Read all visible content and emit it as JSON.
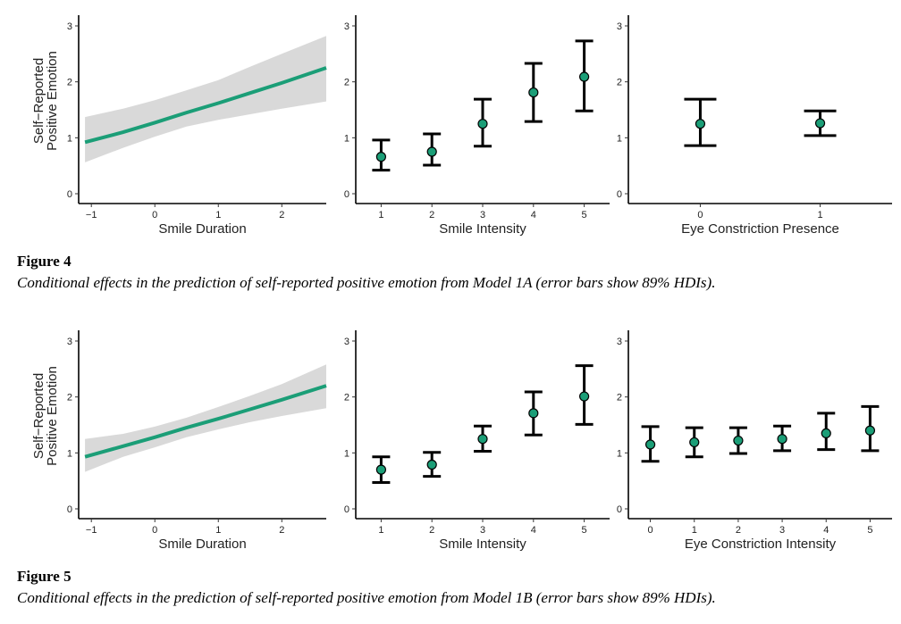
{
  "figures": [
    {
      "title": "Figure 4",
      "caption": "Conditional effects in the prediction of self-reported positive emotion from Model 1A (error bars show 89% HDIs).",
      "ylabel_lines": [
        "Self−Reported",
        "Positive Emotion"
      ]
    },
    {
      "title": "Figure 5",
      "caption": "Conditional effects in the prediction of self-reported positive emotion from Model 1B (error bars show 89% HDIs).",
      "ylabel_lines": [
        "Self−Reported",
        "Positive Emotion"
      ]
    }
  ],
  "colors": {
    "line": "#1b9e77",
    "ribbon": "#d9d9d9",
    "point": "#1b9e77",
    "error_bar": "#000000"
  },
  "chart_data": [
    {
      "figure": 0,
      "type": "line",
      "xlabel": "Smile Duration",
      "ylabel": "Self−Reported Positive Emotion",
      "xlim": [
        -1.2,
        2.7
      ],
      "ylim": [
        0,
        3
      ],
      "xticks": [
        -1,
        0,
        1,
        2
      ],
      "xtick_labels": [
        "−1",
        "0",
        "1",
        "2"
      ],
      "yticks": [
        0,
        1,
        2,
        3
      ],
      "x": [
        -1.1,
        -0.5,
        0,
        0.5,
        1,
        1.5,
        2,
        2.7
      ],
      "y": [
        0.92,
        1.1,
        1.27,
        1.45,
        1.62,
        1.8,
        1.98,
        2.25
      ],
      "lower": [
        0.56,
        0.82,
        1.02,
        1.2,
        1.32,
        1.42,
        1.52,
        1.65
      ],
      "upper": [
        1.37,
        1.52,
        1.67,
        1.85,
        2.03,
        2.27,
        2.5,
        2.82
      ]
    },
    {
      "figure": 0,
      "type": "scatter",
      "xlabel": "Smile Intensity",
      "xlim": [
        0.5,
        5.5
      ],
      "ylim": [
        0,
        3
      ],
      "xticks": [
        1,
        2,
        3,
        4,
        5
      ],
      "xtick_labels": [
        "1",
        "2",
        "3",
        "4",
        "5"
      ],
      "yticks": [
        0,
        1,
        2,
        3
      ],
      "x": [
        1,
        2,
        3,
        4,
        5
      ],
      "y": [
        0.66,
        0.75,
        1.25,
        1.81,
        2.09
      ],
      "lower": [
        0.42,
        0.51,
        0.85,
        1.29,
        1.48
      ],
      "upper": [
        0.96,
        1.07,
        1.69,
        2.33,
        2.73
      ]
    },
    {
      "figure": 0,
      "type": "scatter",
      "xlabel": "Eye Constriction Presence",
      "xlim": [
        -0.6,
        1.6
      ],
      "ylim": [
        0,
        3
      ],
      "xticks": [
        0,
        1
      ],
      "xtick_labels": [
        "0",
        "1"
      ],
      "yticks": [
        0,
        1,
        2,
        3
      ],
      "x": [
        0,
        1
      ],
      "y": [
        1.25,
        1.26
      ],
      "lower": [
        0.86,
        1.04
      ],
      "upper": [
        1.69,
        1.48
      ]
    },
    {
      "figure": 1,
      "type": "line",
      "xlabel": "Smile Duration",
      "ylabel": "Self−Reported Positive Emotion",
      "xlim": [
        -1.2,
        2.7
      ],
      "ylim": [
        0,
        3
      ],
      "xticks": [
        -1,
        0,
        1,
        2
      ],
      "xtick_labels": [
        "−1",
        "0",
        "1",
        "2"
      ],
      "yticks": [
        0,
        1,
        2,
        3
      ],
      "x": [
        -1.1,
        -0.5,
        0,
        0.5,
        1,
        1.5,
        2,
        2.7
      ],
      "y": [
        0.93,
        1.12,
        1.28,
        1.45,
        1.61,
        1.78,
        1.95,
        2.2
      ],
      "lower": [
        0.66,
        0.93,
        1.1,
        1.28,
        1.42,
        1.55,
        1.66,
        1.8
      ],
      "upper": [
        1.25,
        1.34,
        1.47,
        1.63,
        1.82,
        2.02,
        2.23,
        2.58
      ]
    },
    {
      "figure": 1,
      "type": "scatter",
      "xlabel": "Smile Intensity",
      "xlim": [
        0.5,
        5.5
      ],
      "ylim": [
        0,
        3
      ],
      "xticks": [
        1,
        2,
        3,
        4,
        5
      ],
      "xtick_labels": [
        "1",
        "2",
        "3",
        "4",
        "5"
      ],
      "yticks": [
        0,
        1,
        2,
        3
      ],
      "x": [
        1,
        2,
        3,
        4,
        5
      ],
      "y": [
        0.7,
        0.79,
        1.25,
        1.71,
        2.01
      ],
      "lower": [
        0.47,
        0.58,
        1.03,
        1.32,
        1.51
      ],
      "upper": [
        0.93,
        1.01,
        1.48,
        2.09,
        2.56
      ]
    },
    {
      "figure": 1,
      "type": "scatter",
      "xlabel": "Eye Constriction Intensity",
      "xlim": [
        -0.5,
        5.5
      ],
      "ylim": [
        0,
        3
      ],
      "xticks": [
        0,
        1,
        2,
        3,
        4,
        5
      ],
      "xtick_labels": [
        "0",
        "1",
        "2",
        "3",
        "4",
        "5"
      ],
      "yticks": [
        0,
        1,
        2,
        3
      ],
      "x": [
        0,
        1,
        2,
        3,
        4,
        5
      ],
      "y": [
        1.15,
        1.19,
        1.22,
        1.25,
        1.35,
        1.4
      ],
      "lower": [
        0.85,
        0.93,
        0.99,
        1.04,
        1.06,
        1.04
      ],
      "upper": [
        1.47,
        1.45,
        1.45,
        1.48,
        1.71,
        1.83
      ]
    }
  ]
}
